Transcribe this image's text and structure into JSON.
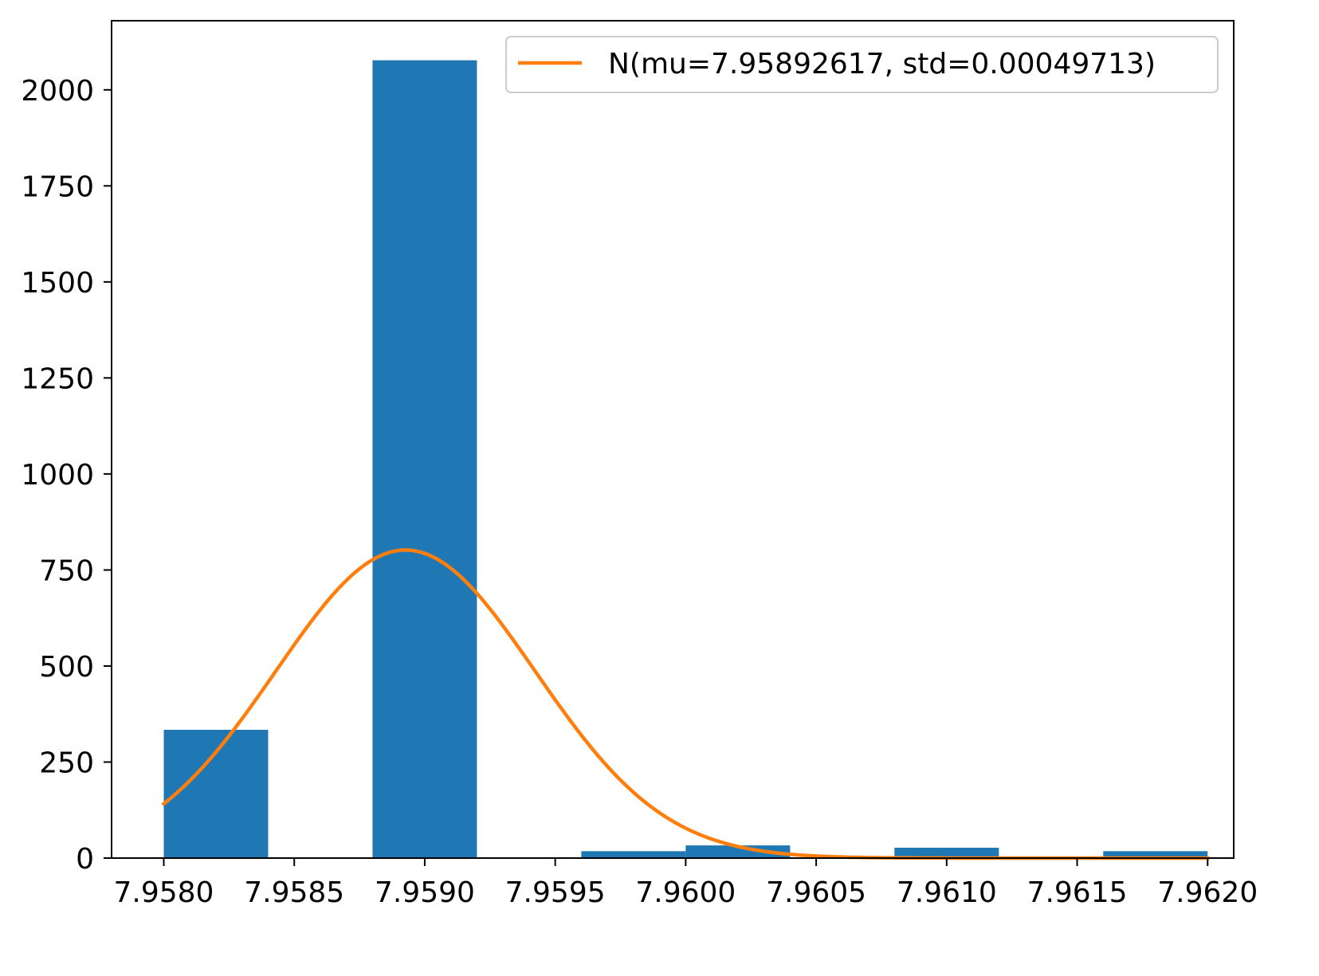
{
  "chart_data": {
    "type": "bar",
    "title": "",
    "xlabel": "",
    "ylabel": "",
    "xlim": [
      7.9578,
      7.9621
    ],
    "ylim": [
      0,
      2180
    ],
    "grid": false,
    "legend_position": "top-right",
    "x_ticks": [
      {
        "value": 7.958,
        "label": "7.9580"
      },
      {
        "value": 7.9585,
        "label": "7.9585"
      },
      {
        "value": 7.959,
        "label": "7.9590"
      },
      {
        "value": 7.9595,
        "label": "7.9595"
      },
      {
        "value": 7.96,
        "label": "7.9600"
      },
      {
        "value": 7.9605,
        "label": "7.9605"
      },
      {
        "value": 7.961,
        "label": "7.9610"
      },
      {
        "value": 7.9615,
        "label": "7.9615"
      },
      {
        "value": 7.962,
        "label": "7.9620"
      }
    ],
    "y_ticks": [
      {
        "value": 0,
        "label": "0"
      },
      {
        "value": 250,
        "label": "250"
      },
      {
        "value": 500,
        "label": "500"
      },
      {
        "value": 750,
        "label": "750"
      },
      {
        "value": 1000,
        "label": "1000"
      },
      {
        "value": 1250,
        "label": "1250"
      },
      {
        "value": 1500,
        "label": "1500"
      },
      {
        "value": 1750,
        "label": "1750"
      },
      {
        "value": 2000,
        "label": "2000"
      }
    ],
    "histogram": {
      "bin_edges": [
        7.958,
        7.9584,
        7.9588,
        7.9592,
        7.9596,
        7.96,
        7.9604,
        7.9608,
        7.9612,
        7.9616,
        7.962
      ],
      "counts": [
        334,
        0,
        2077,
        0,
        18,
        33,
        0,
        27,
        0,
        18
      ],
      "color": "#1f77b4"
    },
    "series": [
      {
        "name": "N(mu=7.95892617, std=0.00049713)",
        "type": "line",
        "distribution": "normal",
        "mu": 7.95892617,
        "std": 0.00049713,
        "peak": 802,
        "x_range": [
          7.958,
          7.962
        ],
        "color": "#ff7f0e"
      }
    ]
  }
}
